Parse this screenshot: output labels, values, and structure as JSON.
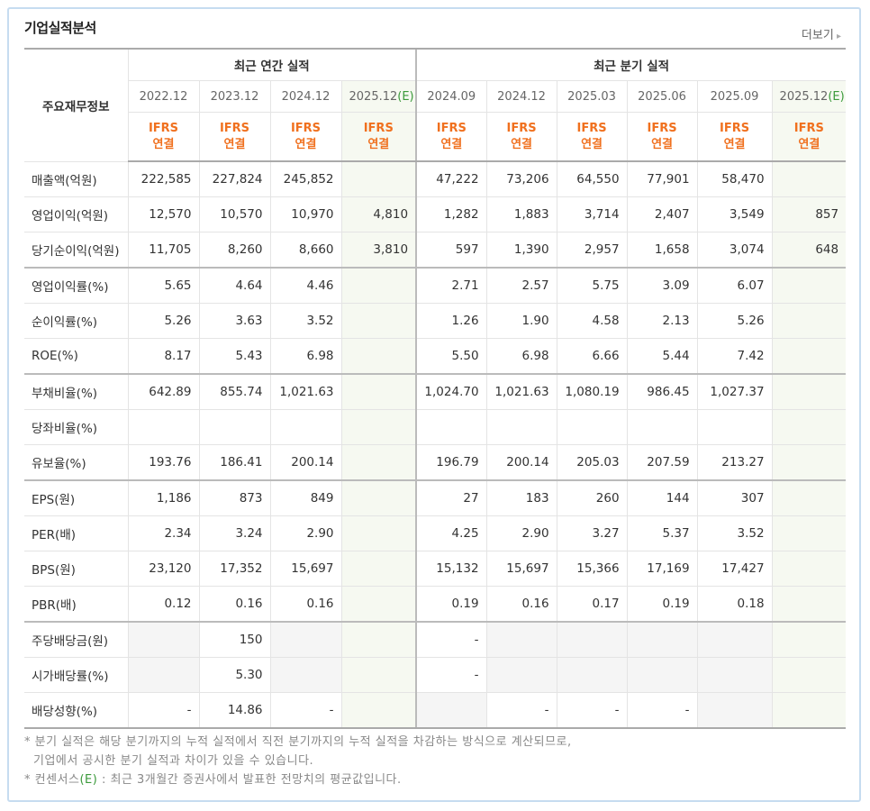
{
  "header": {
    "title": "기업실적분석",
    "more": "더보기"
  },
  "table": {
    "corner": "주요재무정보",
    "groups": [
      {
        "label": "최근 연간 실적",
        "span": 4
      },
      {
        "label": "최근 분기 실적",
        "span": 6
      }
    ],
    "periods": [
      {
        "date": "2022.12",
        "basis": "IFRS",
        "scope": "연결"
      },
      {
        "date": "2023.12",
        "basis": "IFRS",
        "scope": "연결"
      },
      {
        "date": "2024.12",
        "basis": "IFRS",
        "scope": "연결"
      },
      {
        "date": "2025.12",
        "mark": "(E)",
        "basis": "IFRS",
        "scope": "연결"
      },
      {
        "date": "2024.09",
        "basis": "IFRS",
        "scope": "연결"
      },
      {
        "date": "2024.12",
        "basis": "IFRS",
        "scope": "연결"
      },
      {
        "date": "2025.03",
        "basis": "IFRS",
        "scope": "연결"
      },
      {
        "date": "2025.06",
        "basis": "IFRS",
        "scope": "연결"
      },
      {
        "date": "2025.09",
        "basis": "IFRS",
        "scope": "연결"
      },
      {
        "date": "2025.12",
        "mark": "(E)",
        "basis": "IFRS",
        "scope": "연결"
      }
    ],
    "sections": [
      [
        {
          "label": "매출액(억원)",
          "values": [
            "222,585",
            "227,824",
            "245,852",
            null,
            "47,222",
            "73,206",
            "64,550",
            "77,901",
            "58,470",
            null
          ]
        },
        {
          "label": "영업이익(억원)",
          "values": [
            "12,570",
            "10,570",
            "10,970",
            "4,810",
            "1,282",
            "1,883",
            "3,714",
            "2,407",
            "3,549",
            "857"
          ]
        },
        {
          "label": "당기순이익(억원)",
          "values": [
            "11,705",
            "8,260",
            "8,660",
            "3,810",
            "597",
            "1,390",
            "2,957",
            "1,658",
            "3,074",
            "648"
          ]
        }
      ],
      [
        {
          "label": "영업이익률(%)",
          "values": [
            "5.65",
            "4.64",
            "4.46",
            null,
            "2.71",
            "2.57",
            "5.75",
            "3.09",
            "6.07",
            null
          ]
        },
        {
          "label": "순이익률(%)",
          "values": [
            "5.26",
            "3.63",
            "3.52",
            null,
            "1.26",
            "1.90",
            "4.58",
            "2.13",
            "5.26",
            null
          ]
        },
        {
          "label": "ROE(%)",
          "values": [
            "8.17",
            "5.43",
            "6.98",
            null,
            "5.50",
            "6.98",
            "6.66",
            "5.44",
            "7.42",
            null
          ]
        }
      ],
      [
        {
          "label": "부채비율(%)",
          "values": [
            "642.89",
            "855.74",
            "1,021.63",
            null,
            "1,024.70",
            "1,021.63",
            "1,080.19",
            "986.45",
            "1,027.37",
            null
          ]
        },
        {
          "label": "당좌비율(%)",
          "values": [
            null,
            null,
            null,
            null,
            null,
            null,
            null,
            null,
            null,
            null
          ]
        },
        {
          "label": "유보율(%)",
          "values": [
            "193.76",
            "186.41",
            "200.14",
            null,
            "196.79",
            "200.14",
            "205.03",
            "207.59",
            "213.27",
            null
          ]
        }
      ],
      [
        {
          "label": "EPS(원)",
          "values": [
            "1,186",
            "873",
            "849",
            null,
            "27",
            "183",
            "260",
            "144",
            "307",
            null
          ]
        },
        {
          "label": "PER(배)",
          "values": [
            "2.34",
            "3.24",
            "2.90",
            null,
            "4.25",
            "2.90",
            "3.27",
            "5.37",
            "3.52",
            null
          ]
        },
        {
          "label": "BPS(원)",
          "values": [
            "23,120",
            "17,352",
            "15,697",
            null,
            "15,132",
            "15,697",
            "15,366",
            "17,169",
            "17,427",
            null
          ]
        },
        {
          "label": "PBR(배)",
          "values": [
            "0.12",
            "0.16",
            "0.16",
            null,
            "0.19",
            "0.16",
            "0.17",
            "0.19",
            "0.18",
            null
          ]
        }
      ],
      [
        {
          "label": "주당배당금(원)",
          "values": [
            null,
            "150",
            null,
            null,
            "-",
            null,
            null,
            null,
            null,
            null
          ]
        },
        {
          "label": "시가배당률(%)",
          "values": [
            null,
            "5.30",
            null,
            null,
            "-",
            null,
            null,
            null,
            null,
            null
          ]
        },
        {
          "label": "배당성향(%)",
          "values": [
            "-",
            "14.86",
            "-",
            null,
            null,
            "-",
            "-",
            "-",
            null,
            null
          ]
        }
      ]
    ]
  },
  "notes": [
    {
      "text": "분기 실적은 해당 분기까지의 누적 실적에서 직전 분기까지의 누적 실적을 차감하는 방식으로 계산되므로,"
    },
    {
      "text": "기업에서 공시한 분기 실적과 차이가 있을 수 있습니다.",
      "continued": true
    },
    {
      "text": "컨센서스",
      "mark": "(E)",
      "rest": " : 최근 3개월간 증권사에서 발표한 전망치의 평균값입니다."
    }
  ]
}
